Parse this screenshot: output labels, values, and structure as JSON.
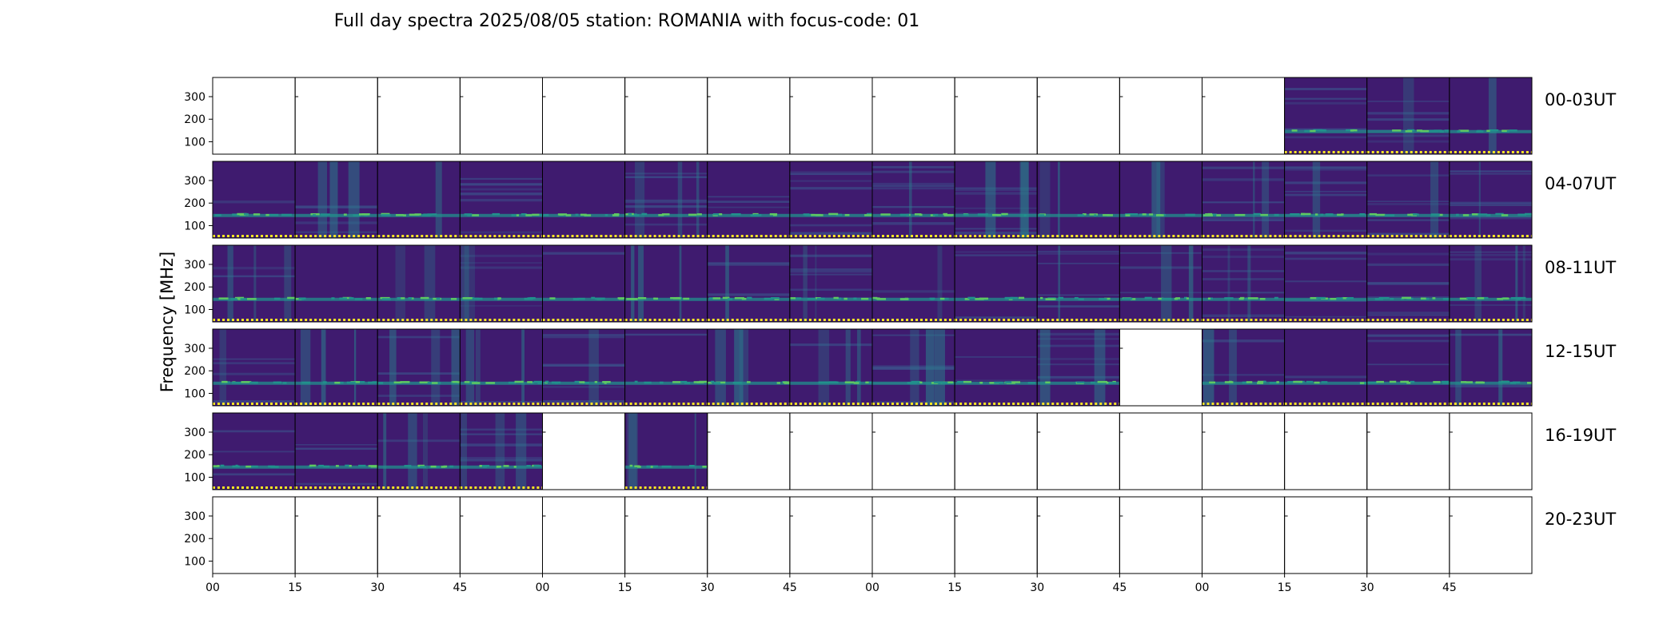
{
  "chart_data": {
    "type": "heatmap",
    "title": "Full day spectra 2025/08/05 station: ROMANIA with focus-code: 01",
    "ylabel": "Frequency [MHz]",
    "xlabel": "",
    "y_ticks": [
      "100",
      "200",
      "300"
    ],
    "ylim": [
      45,
      385
    ],
    "x_ticks": [
      "00",
      "15",
      "30",
      "45",
      "00",
      "15",
      "30",
      "45",
      "00",
      "15",
      "30",
      "45",
      "00",
      "15",
      "30",
      "45"
    ],
    "rows": [
      {
        "label": "00-03UT",
        "panels": [
          0,
          0,
          0,
          0,
          0,
          0,
          0,
          0,
          0,
          0,
          0,
          0,
          0,
          1,
          1,
          1
        ]
      },
      {
        "label": "04-07UT",
        "panels": [
          1,
          1,
          1,
          1,
          1,
          1,
          1,
          1,
          1,
          1,
          1,
          1,
          1,
          1,
          1,
          1
        ]
      },
      {
        "label": "08-11UT",
        "panels": [
          1,
          1,
          1,
          1,
          1,
          1,
          1,
          1,
          1,
          1,
          1,
          1,
          1,
          1,
          1,
          1
        ]
      },
      {
        "label": "12-15UT",
        "panels": [
          1,
          1,
          1,
          1,
          1,
          1,
          1,
          1,
          1,
          1,
          1,
          0,
          1,
          1,
          1,
          1
        ]
      },
      {
        "label": "16-19UT",
        "panels": [
          1,
          1,
          1,
          1,
          0,
          1,
          0,
          0,
          0,
          0,
          0,
          0,
          0,
          0,
          0,
          0
        ]
      },
      {
        "label": "20-23UT",
        "panels": [
          0,
          0,
          0,
          0,
          0,
          0,
          0,
          0,
          0,
          0,
          0,
          0,
          0,
          0,
          0,
          0
        ]
      }
    ],
    "colormap": [
      "#440154",
      "#3b528b",
      "#21918c",
      "#5ec962",
      "#fde725"
    ],
    "background_color": "#3f1b6f",
    "band_color": "#2a7a8a"
  }
}
